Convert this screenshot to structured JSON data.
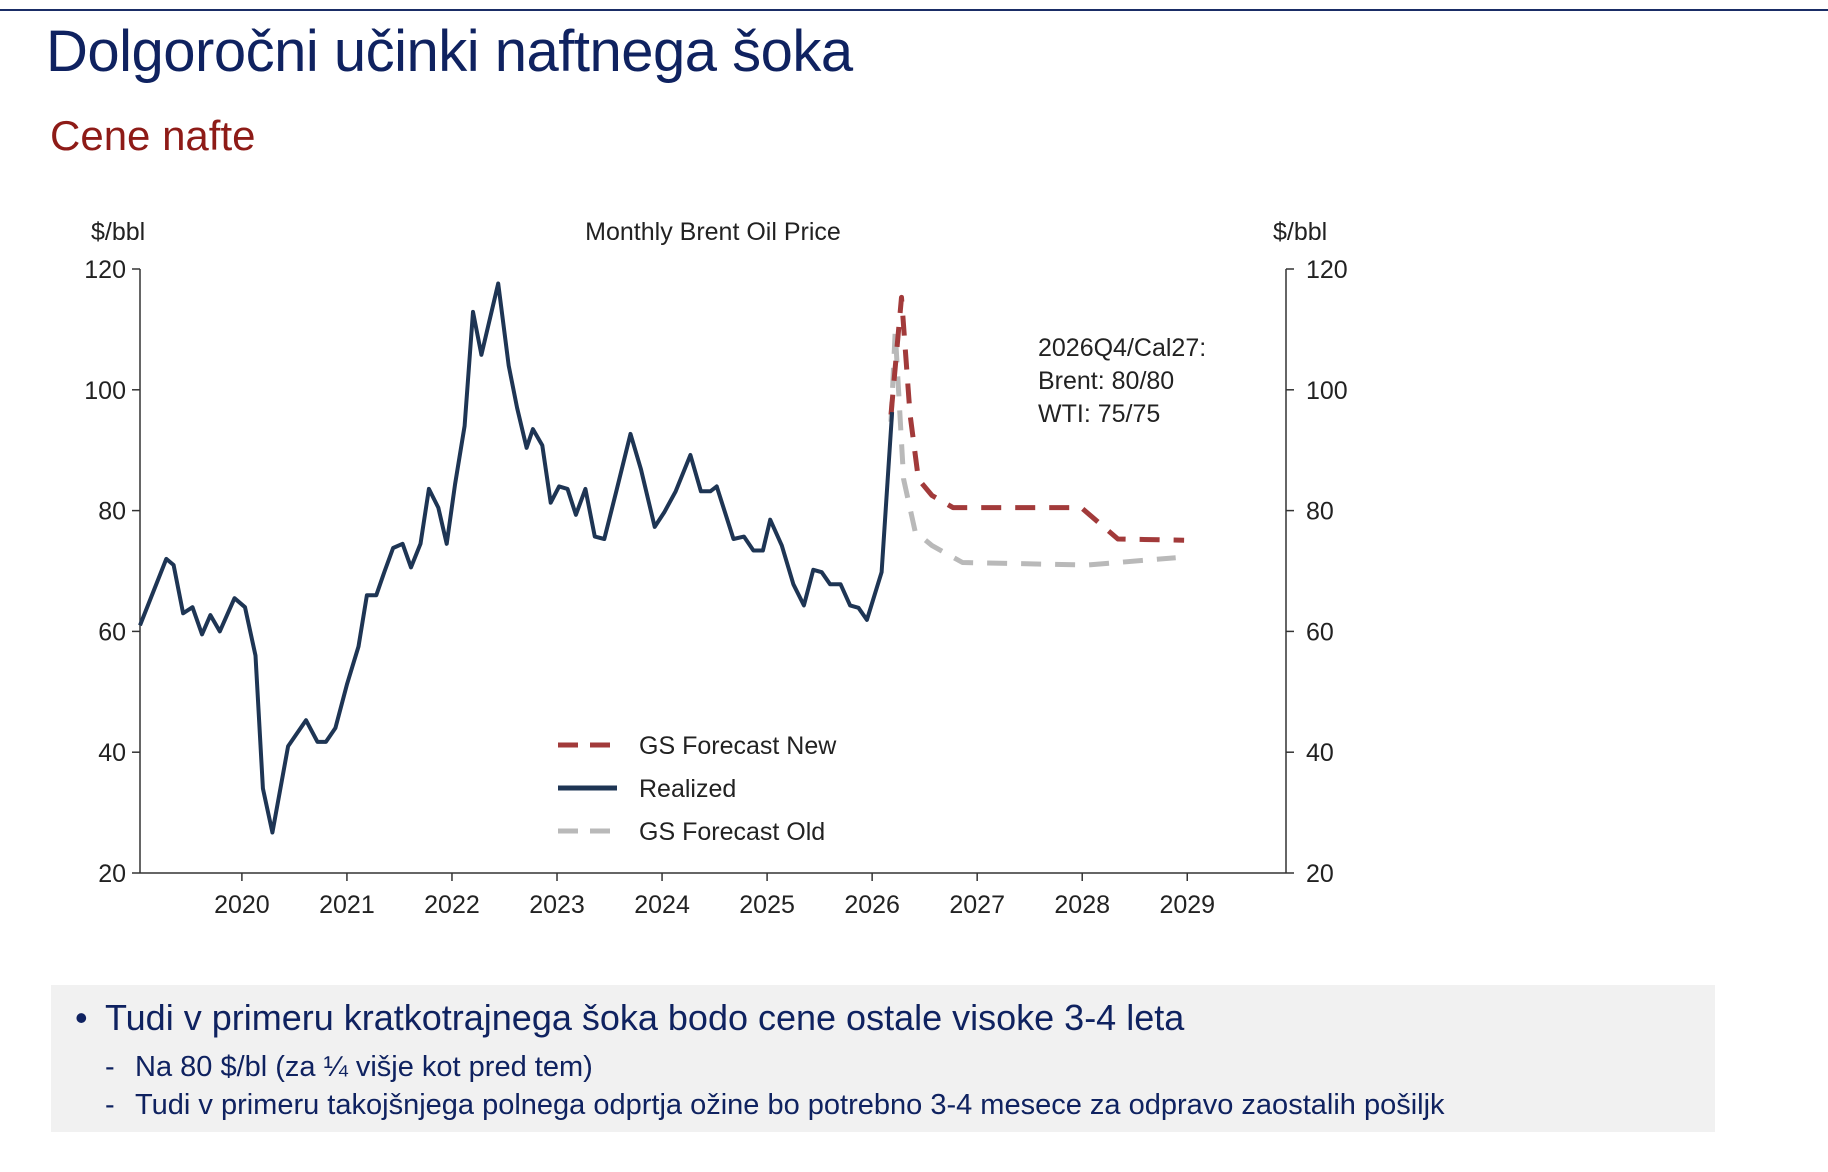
{
  "header": {
    "title": "Dolgoročni učinki naftnega šoka",
    "subtitle": "Cene nafte"
  },
  "colors": {
    "title": "#0f2260",
    "subtitle": "#8e1b17",
    "realized": "#1e3554",
    "new": "#a23a3a",
    "old": "#b9b9b9"
  },
  "chart_data": {
    "type": "line",
    "title": "Monthly Brent Oil Price",
    "ylabel_left": "$/bbl",
    "ylabel_right": "$/bbl",
    "ylim": [
      20,
      120
    ],
    "yticks": [
      20,
      40,
      60,
      80,
      100,
      120
    ],
    "xlim": [
      2019.03,
      2029.94
    ],
    "xticks": [
      2020,
      2021,
      2022,
      2023,
      2024,
      2025,
      2026,
      2027,
      2028,
      2029
    ],
    "xtick_labels": [
      "2020",
      "2021",
      "2022",
      "2023",
      "2024",
      "2025",
      "2026",
      "2027",
      "2028",
      "2029"
    ],
    "annotation": [
      "2026Q4/Cal27:",
      "Brent: 80/80",
      "WTI: 75/75"
    ],
    "legend_position": "bottom-center",
    "series": [
      {
        "name": "GS Forecast New",
        "style": "dashed",
        "color": "#a23a3a",
        "x": [
          2026.18,
          2026.28,
          2026.36,
          2026.44,
          2026.57,
          2026.77,
          2027.99,
          2028.34,
          2028.97
        ],
        "y": [
          95.9,
          115.3,
          96,
          85.2,
          82.5,
          80.5,
          80.5,
          75.3,
          75.1
        ]
      },
      {
        "name": "Realized",
        "style": "solid",
        "color": "#1e3554",
        "x": [
          2019.03,
          2019.28,
          2019.35,
          2019.44,
          2019.53,
          2019.62,
          2019.7,
          2019.79,
          2019.93,
          2020.03,
          2020.13,
          2020.2,
          2020.29,
          2020.44,
          2020.61,
          2020.72,
          2020.8,
          2020.89,
          2021.0,
          2021.11,
          2021.19,
          2021.28,
          2021.36,
          2021.44,
          2021.53,
          2021.61,
          2021.7,
          2021.78,
          2021.87,
          2021.95,
          2022.03,
          2022.12,
          2022.2,
          2022.28,
          2022.44,
          2022.54,
          2022.62,
          2022.71,
          2022.77,
          2022.86,
          2022.94,
          2023.02,
          2023.1,
          2023.18,
          2023.27,
          2023.36,
          2023.45,
          2023.57,
          2023.7,
          2023.8,
          2023.93,
          2024.02,
          2024.13,
          2024.27,
          2024.37,
          2024.46,
          2024.52,
          2024.68,
          2024.78,
          2024.87,
          2024.96,
          2025.03,
          2025.14,
          2025.25,
          2025.35,
          2025.44,
          2025.52,
          2025.6,
          2025.7,
          2025.79,
          2025.87,
          2025.95,
          2026.09,
          2026.19
        ],
        "y": [
          61,
          72,
          71,
          63,
          64,
          59.5,
          62.7,
          60,
          65.5,
          64,
          56,
          34,
          26.7,
          41,
          45.3,
          41.7,
          41.7,
          44,
          51.2,
          57.5,
          66,
          66,
          70,
          73.8,
          74.5,
          70.6,
          74.5,
          83.6,
          80.5,
          74.5,
          84.4,
          94,
          112.9,
          105.8,
          117.6,
          104,
          97,
          90.4,
          93.5,
          90.8,
          81.3,
          84,
          83.6,
          79.3,
          83.6,
          75.7,
          75.3,
          83.6,
          92.7,
          86.8,
          77.3,
          79.7,
          83.2,
          89.2,
          83.2,
          83.2,
          84,
          75.3,
          75.7,
          73.4,
          73.4,
          78.5,
          74.2,
          67.8,
          64.3,
          70.2,
          69.8,
          67.8,
          67.8,
          64.3,
          63.9,
          61.9,
          69.8,
          96.3
        ]
      },
      {
        "name": "GS Forecast Old",
        "style": "dashed",
        "color": "#b9b9b9",
        "x": [
          2026.18,
          2026.22,
          2026.3,
          2026.41,
          2026.57,
          2026.86,
          2028.05,
          2028.89
        ],
        "y": [
          94.7,
          109.7,
          85.2,
          76.5,
          74.2,
          71.4,
          71,
          72.2
        ]
      }
    ]
  },
  "notes": {
    "bullet": "Tudi v primeru kratkotrajnega šoka bodo cene ostale visoke 3-4 leta",
    "sub1": "Na 80 $/bl (za ¼ višje kot pred tem)",
    "sub2": "Tudi v primeru takojšnjega polnega odprtja ožine bo potrebno 3-4 mesece za odpravo zaostalih pošiljk",
    "bullet_mark": "•",
    "dash_mark": "-"
  }
}
